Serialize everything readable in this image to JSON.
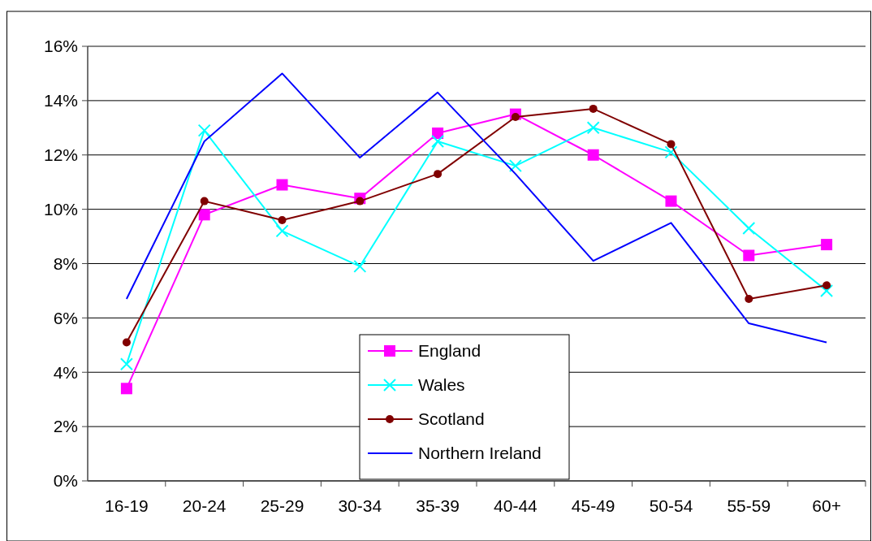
{
  "chart_data": {
    "type": "line",
    "categories": [
      "16-19",
      "20-24",
      "25-29",
      "30-34",
      "35-39",
      "40-44",
      "45-49",
      "50-54",
      "55-59",
      "60+"
    ],
    "series": [
      {
        "name": "England",
        "color": "#ff00ff",
        "marker": "square",
        "values": [
          3.4,
          9.8,
          10.9,
          10.4,
          12.8,
          13.5,
          12.0,
          10.3,
          8.3,
          8.7
        ]
      },
      {
        "name": "Wales",
        "color": "#00ffff",
        "marker": "cross",
        "values": [
          4.3,
          12.9,
          9.2,
          7.9,
          12.5,
          11.6,
          13.0,
          12.1,
          9.3,
          7.0
        ]
      },
      {
        "name": "Scotland",
        "color": "#800000",
        "marker": "circle",
        "values": [
          5.1,
          10.3,
          9.6,
          10.3,
          11.3,
          13.4,
          13.7,
          12.4,
          6.7,
          7.2
        ]
      },
      {
        "name": "Northern Ireland",
        "color": "#0000ff",
        "marker": "none",
        "values": [
          6.7,
          12.5,
          15.0,
          11.9,
          14.3,
          11.3,
          8.1,
          9.5,
          5.8,
          5.1
        ]
      }
    ],
    "ylim": [
      0,
      16
    ],
    "yticks": [
      {
        "value": 0,
        "label": "0%"
      },
      {
        "value": 2,
        "label": "2%"
      },
      {
        "value": 4,
        "label": "4%"
      },
      {
        "value": 6,
        "label": "6%"
      },
      {
        "value": 8,
        "label": "8%"
      },
      {
        "value": 10,
        "label": "10%"
      },
      {
        "value": 12,
        "label": "12%"
      },
      {
        "value": 14,
        "label": "14%"
      },
      {
        "value": 16,
        "label": "16%"
      }
    ],
    "grid": "y",
    "legend": "bottom"
  }
}
